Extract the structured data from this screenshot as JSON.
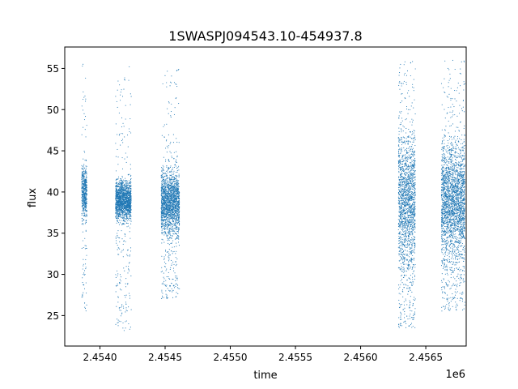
{
  "chart_data": {
    "type": "scatter",
    "title": "1SWASPJ094543.10-454937.8",
    "xlabel": "time",
    "ylabel": "flux",
    "x_offset_label": "1e6",
    "xlim": [
      2453730,
      2456810
    ],
    "ylim": [
      21.3,
      57.6
    ],
    "xticks": [
      2.454,
      2.4545,
      2.455,
      2.4555,
      2.456,
      2.4565
    ],
    "xtick_labels": [
      "2.4540",
      "2.4545",
      "2.4550",
      "2.4555",
      "2.4560",
      "2.4565"
    ],
    "yticks": [
      25,
      30,
      35,
      40,
      45,
      50,
      55
    ],
    "ytick_labels": [
      "25",
      "30",
      "35",
      "40",
      "45",
      "50",
      "55"
    ],
    "grid": false,
    "legend": "none",
    "marker_color": "#1f77b4",
    "series": [
      {
        "segments": [
          {
            "x_start": 2453860,
            "x_end": 2453900,
            "core_low": 37.5,
            "core_high": 42.5,
            "min": 25.5,
            "max": 55.5
          },
          {
            "x_start": 2454120,
            "x_end": 2454240,
            "core_low": 37.0,
            "core_high": 41.0,
            "min": 23.0,
            "max": 55.3
          },
          {
            "x_start": 2454470,
            "x_end": 2454610,
            "core_low": 35.5,
            "core_high": 42.0,
            "min": 27.0,
            "max": 55.0
          },
          {
            "x_start": 2456290,
            "x_end": 2456420,
            "core_low": 32.0,
            "core_high": 46.0,
            "min": 23.5,
            "max": 56.0
          },
          {
            "x_start": 2456620,
            "x_end": 2456800,
            "core_low": 33.0,
            "core_high": 45.0,
            "min": 25.5,
            "max": 56.0
          }
        ],
        "points": [
          [
            2453875,
            40.1
          ],
          [
            2453882,
            38.6
          ],
          [
            2453890,
            41.3
          ],
          [
            2453868,
            36.2
          ],
          [
            2453895,
            43.8
          ],
          [
            2453872,
            30.0
          ],
          [
            2453886,
            33.5
          ],
          [
            2453879,
            49.5
          ],
          [
            2453884,
            26.0
          ],
          [
            2453870,
            55.5
          ],
          [
            2454140,
            39.8
          ],
          [
            2454165,
            38.5
          ],
          [
            2454190,
            40.2
          ],
          [
            2454210,
            41.0
          ],
          [
            2454230,
            37.8
          ],
          [
            2454155,
            28.2
          ],
          [
            2454200,
            29.5
          ],
          [
            2454180,
            33.0
          ],
          [
            2454220,
            24.0
          ],
          [
            2454150,
            53.0
          ],
          [
            2454225,
            55.2
          ],
          [
            2454175,
            46.0
          ],
          [
            2454490,
            39.2
          ],
          [
            2454520,
            37.5
          ],
          [
            2454545,
            40.5
          ],
          [
            2454570,
            41.8
          ],
          [
            2454595,
            42.6
          ],
          [
            2454505,
            28.0
          ],
          [
            2454530,
            29.5
          ],
          [
            2454560,
            31.5
          ],
          [
            2454585,
            46.5
          ],
          [
            2454600,
            54.8
          ],
          [
            2454510,
            27.2
          ],
          [
            2454580,
            35.0
          ],
          [
            2456310,
            38.0
          ],
          [
            2456330,
            42.5
          ],
          [
            2456350,
            35.0
          ],
          [
            2456370,
            44.5
          ],
          [
            2456395,
            40.0
          ],
          [
            2456320,
            29.0
          ],
          [
            2456345,
            27.0
          ],
          [
            2456380,
            48.5
          ],
          [
            2456360,
            52.0
          ],
          [
            2456340,
            55.8
          ],
          [
            2456400,
            24.5
          ],
          [
            2456325,
            31.5
          ],
          [
            2456640,
            40.5
          ],
          [
            2456665,
            36.0
          ],
          [
            2456690,
            42.5
          ],
          [
            2456720,
            38.0
          ],
          [
            2456750,
            41.0
          ],
          [
            2456780,
            39.5
          ],
          [
            2456655,
            31.0
          ],
          [
            2456700,
            30.5
          ],
          [
            2456740,
            28.5
          ],
          [
            2456770,
            29.0
          ],
          [
            2456685,
            48.0
          ],
          [
            2456795,
            55.8
          ],
          [
            2456730,
            26.0
          ],
          [
            2456760,
            50.5
          ]
        ]
      }
    ]
  }
}
